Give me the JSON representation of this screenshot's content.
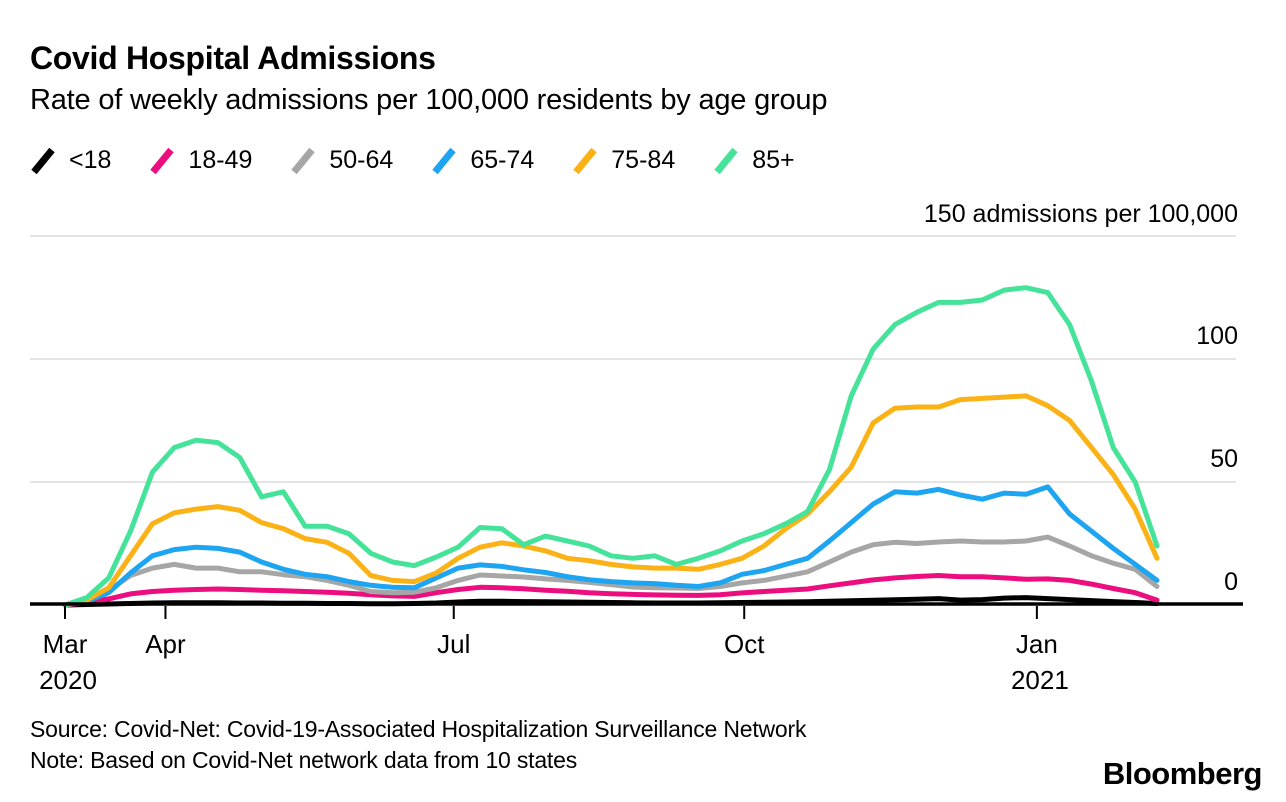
{
  "header": {
    "title": "Covid Hospital Admissions",
    "subtitle": "Rate of weekly admissions per 100,000 residents by age group"
  },
  "colors": {
    "background": "#ffffff",
    "gridline": "#dcdcdc",
    "axis": "#000000",
    "text": "#000000"
  },
  "legend": {
    "items": [
      {
        "id": "under-18",
        "label": "<18",
        "color": "#000000"
      },
      {
        "id": "age-18-49",
        "label": "18-49",
        "color": "#ec0e7f"
      },
      {
        "id": "age-50-64",
        "label": "50-64",
        "color": "#a6a6a6"
      },
      {
        "id": "age-65-74",
        "label": "65-74",
        "color": "#1da5f2"
      },
      {
        "id": "age-75-84",
        "label": "75-84",
        "color": "#fbb216"
      },
      {
        "id": "age-85-plus",
        "label": "85+",
        "color": "#45e399"
      }
    ]
  },
  "chart_data": {
    "type": "line",
    "title": "Covid Hospital Admissions",
    "subtitle": "Rate of weekly admissions per 100,000 residents by age group",
    "x_description": "Weekly data points, March 2020 through February 2021",
    "ylim": [
      0,
      150
    ],
    "grid": "horizontal",
    "legend_position": "top-left",
    "y_axis": {
      "top_tick": {
        "value": 150,
        "label": "150 admissions per 100,000"
      },
      "ticks": [
        {
          "value": 100,
          "label": "100"
        },
        {
          "value": 50,
          "label": "50"
        },
        {
          "value": 0,
          "label": "0"
        }
      ]
    },
    "x_axis": {
      "ticks": [
        {
          "label": "Mar",
          "sublabel": "2020",
          "pos": 0
        },
        {
          "label": "Apr",
          "pos": 4.6
        },
        {
          "label": "Jul",
          "pos": 17.8
        },
        {
          "label": "Oct",
          "pos": 31.1
        },
        {
          "label": "Jan",
          "sublabel": "2021",
          "pos": 44.5
        }
      ]
    },
    "series": [
      {
        "id": "under-18",
        "name": "<18",
        "color": "#000000",
        "values": [
          0,
          0.2,
          0.4,
          0.6,
          0.8,
          0.9,
          0.9,
          0.9,
          0.8,
          0.8,
          0.7,
          0.7,
          0.6,
          0.6,
          0.5,
          0.5,
          0.6,
          0.8,
          1.2,
          1.5,
          1.5,
          1.4,
          1.3,
          1.2,
          1.1,
          1,
          0.9,
          0.8,
          0.8,
          0.8,
          0.9,
          1,
          1.1,
          1.2,
          1.3,
          1.5,
          1.7,
          1.9,
          2.1,
          2.3,
          2.6,
          2,
          2.2,
          2.8,
          3,
          2.6,
          2.2,
          1.8,
          1.4,
          1,
          0.6
        ]
      },
      {
        "id": "age-18-49",
        "name": "18-49",
        "color": "#ec0e7f",
        "values": [
          0,
          1,
          2.5,
          4.5,
          5.5,
          6,
          6.3,
          6.5,
          6.3,
          6,
          5.8,
          5.5,
          5.2,
          4.8,
          4.2,
          3.7,
          3.5,
          5,
          6.3,
          7.2,
          7,
          6.6,
          6,
          5.6,
          5,
          4.6,
          4.3,
          4.1,
          4,
          3.9,
          4.2,
          4.9,
          5.5,
          6,
          6.5,
          7.8,
          9,
          10.2,
          11,
          11.6,
          12,
          11.5,
          11.5,
          11,
          10.5,
          10.6,
          10,
          8.5,
          6.7,
          5,
          2
        ]
      },
      {
        "id": "age-50-64",
        "name": "50-64",
        "color": "#a6a6a6",
        "values": [
          0,
          2,
          6,
          12,
          15,
          16.5,
          15,
          15,
          13.5,
          13.5,
          12.3,
          11.5,
          10,
          8,
          5.5,
          5,
          5.2,
          7,
          10,
          12.2,
          11.8,
          11.4,
          10.6,
          10,
          9.2,
          8.3,
          7.3,
          7,
          6.9,
          6.7,
          7.5,
          9,
          10,
          11.7,
          13.5,
          17.5,
          21.5,
          24.5,
          25.5,
          25,
          25.6,
          26,
          25.6,
          25.6,
          26,
          27.6,
          24,
          20,
          17,
          14.5,
          7.5
        ]
      },
      {
        "id": "age-65-74",
        "name": "65-74",
        "color": "#1da5f2",
        "values": [
          0,
          1.5,
          5,
          13,
          20,
          22.5,
          23.5,
          23,
          21.5,
          17.5,
          14.5,
          12.5,
          11.5,
          9.5,
          8,
          7.2,
          7,
          11,
          15,
          16.3,
          15.7,
          14.3,
          13.2,
          11.5,
          10.3,
          9.5,
          9,
          8.7,
          8,
          7.5,
          9,
          12.5,
          14,
          16.5,
          19,
          26,
          33.5,
          41,
          46,
          45.5,
          47,
          44.7,
          43,
          45.5,
          45,
          48,
          37,
          30,
          23,
          16.5,
          10
        ]
      },
      {
        "id": "age-75-84",
        "name": "75-84",
        "color": "#fbb216",
        "values": [
          0,
          2,
          7,
          20,
          33,
          37.5,
          39,
          40,
          38.5,
          33.5,
          31,
          27,
          25.5,
          21,
          12,
          10,
          9.5,
          13,
          19,
          23.5,
          25.3,
          24,
          22,
          19,
          18,
          16.5,
          15.5,
          15,
          15,
          14.5,
          16.5,
          19,
          24,
          31,
          37,
          46,
          56,
          74,
          80,
          80.5,
          80.5,
          83.5,
          84,
          84.5,
          85,
          81,
          75,
          64,
          53,
          39,
          19
        ]
      },
      {
        "id": "age-85-plus",
        "name": "85+",
        "color": "#45e399",
        "values": [
          0,
          3,
          11,
          30,
          54,
          64,
          67,
          66,
          60,
          44,
          46,
          32,
          32,
          29,
          21,
          17.5,
          16,
          19.5,
          23.5,
          31.5,
          31,
          24.5,
          28,
          26,
          24,
          20,
          19,
          20,
          16.5,
          19,
          22,
          26,
          29,
          33,
          38,
          55,
          85,
          104,
          114,
          119,
          123,
          123,
          124,
          128,
          129,
          127,
          114,
          91,
          64,
          50,
          24
        ]
      }
    ]
  },
  "footer": {
    "source": "Source: Covid-Net: Covid-19-Associated Hospitalization Surveillance Network",
    "note": "Note: Based on Covid-Net network data from 10 states"
  },
  "branding": {
    "logo_text": "Bloomberg"
  }
}
